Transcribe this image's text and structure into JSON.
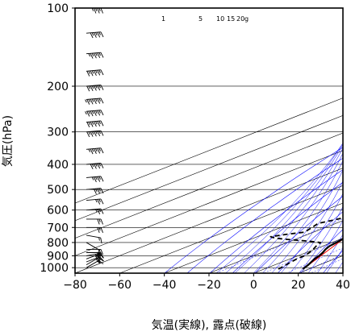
{
  "chart_data": {
    "type": "line",
    "subtype": "skew-T log-P",
    "xlabel": "気温(実線), 露点(破線)",
    "ylabel": "気圧(hPa)",
    "xlim": [
      -80,
      40
    ],
    "ylim": [
      1050,
      100
    ],
    "y_scale": "log",
    "x_ticks": [
      -80,
      -60,
      -40,
      -20,
      0,
      20,
      40
    ],
    "x_tick_labels": [
      "−80",
      "−60",
      "−40",
      "−20",
      "0",
      "20",
      "40"
    ],
    "y_ticks": [
      100,
      200,
      300,
      400,
      500,
      600,
      700,
      800,
      900,
      1000
    ],
    "grid": true,
    "mixing_ratio_labels": [
      "1",
      "5",
      "10",
      "15",
      "20",
      "g"
    ],
    "series": [
      {
        "style": "solid",
        "color": "#000000",
        "points": [
          {
            "p": 1013,
            "t": 17.5
          },
          {
            "p": 1000,
            "t": 16.5
          },
          {
            "p": 975,
            "t": 15.0
          },
          {
            "p": 950,
            "t": 13.0
          },
          {
            "p": 925,
            "t": 11.0
          },
          {
            "p": 900,
            "t": 9.5
          },
          {
            "p": 875,
            "t": 7.5
          },
          {
            "p": 850,
            "t": 5.0
          },
          {
            "p": 825,
            "t": 3.0
          },
          {
            "p": 800,
            "t": 2.0
          },
          {
            "p": 775,
            "t": 1.0
          },
          {
            "p": 750,
            "t": 0.0
          },
          {
            "p": 725,
            "t": -1.0
          },
          {
            "p": 700,
            "t": -2.0
          },
          {
            "p": 675,
            "t": -3.5
          },
          {
            "p": 650,
            "t": -5.5
          },
          {
            "p": 625,
            "t": -7.5
          },
          {
            "p": 600,
            "t": -9.0
          },
          {
            "p": 575,
            "t": -10.5
          },
          {
            "p": 550,
            "t": -12.5
          },
          {
            "p": 525,
            "t": -14.0
          },
          {
            "p": 500,
            "t": -16.5
          },
          {
            "p": 475,
            "t": -18.5
          },
          {
            "p": 450,
            "t": -21.0
          },
          {
            "p": 425,
            "t": -23.5
          },
          {
            "p": 400,
            "t": -26.0
          },
          {
            "p": 375,
            "t": -28.5
          },
          {
            "p": 350,
            "t": -31.5
          },
          {
            "p": 325,
            "t": -35.0
          },
          {
            "p": 310,
            "t": -37.0
          },
          {
            "p": 300,
            "t": -39.5
          },
          {
            "p": 290,
            "t": -41.5
          },
          {
            "p": 275,
            "t": -41.0
          },
          {
            "p": 260,
            "t": -42.0
          },
          {
            "p": 250,
            "t": -44.0
          },
          {
            "p": 225,
            "t": -48.0
          },
          {
            "p": 200,
            "t": -52.5
          },
          {
            "p": 175,
            "t": -56.0
          },
          {
            "p": 150,
            "t": -60.0
          },
          {
            "p": 140,
            "t": -62.0
          },
          {
            "p": 130,
            "t": -63.5
          },
          {
            "p": 125,
            "t": -65.0
          },
          {
            "p": 120,
            "t": -68.0
          },
          {
            "p": 110,
            "t": -70.0
          },
          {
            "p": 105,
            "t": -68.0
          },
          {
            "p": 100,
            "t": -67.0
          }
        ]
      },
      {
        "style": "dashed",
        "color": "#000000",
        "points": [
          {
            "p": 1013,
            "t": 6.5
          },
          {
            "p": 1000,
            "t": 6.0
          },
          {
            "p": 975,
            "t": 5.0
          },
          {
            "p": 950,
            "t": 4.0
          },
          {
            "p": 925,
            "t": 3.0
          },
          {
            "p": 900,
            "t": 3.0
          },
          {
            "p": 875,
            "t": 1.5
          },
          {
            "p": 850,
            "t": -0.5
          },
          {
            "p": 825,
            "t": -3.0
          },
          {
            "p": 800,
            "t": -5.0
          },
          {
            "p": 790,
            "t": -12.0
          },
          {
            "p": 780,
            "t": -22.0
          },
          {
            "p": 770,
            "t": -30.0
          },
          {
            "p": 760,
            "t": -34.0
          },
          {
            "p": 745,
            "t": -30.0
          },
          {
            "p": 730,
            "t": -24.0
          },
          {
            "p": 700,
            "t": -26.0
          },
          {
            "p": 675,
            "t": -28.0
          },
          {
            "p": 650,
            "t": -24.0
          },
          {
            "p": 625,
            "t": -21.0
          },
          {
            "p": 600,
            "t": -20.0
          },
          {
            "p": 575,
            "t": -24.0
          },
          {
            "p": 550,
            "t": -22.0
          },
          {
            "p": 525,
            "t": -28.0
          },
          {
            "p": 500,
            "t": -36.0
          },
          {
            "p": 490,
            "t": -40.0
          },
          {
            "p": 475,
            "t": -36.0
          },
          {
            "p": 460,
            "t": -32.0
          },
          {
            "p": 440,
            "t": -30.0
          },
          {
            "p": 425,
            "t": -31.0
          },
          {
            "p": 410,
            "t": -33.0
          },
          {
            "p": 400,
            "t": -36.0
          },
          {
            "p": 390,
            "t": -40.0
          },
          {
            "p": 375,
            "t": -49.0
          },
          {
            "p": 350,
            "t": -55.0
          },
          {
            "p": 325,
            "t": -58.0
          },
          {
            "p": 310,
            "t": -64.0
          },
          {
            "p": 300,
            "t": -68.0
          }
        ]
      }
    ]
  },
  "colors": {
    "isotherm": "#000000",
    "dry_adiabat": "#0000ff",
    "moist_adiabat": "#0000ff",
    "mixing_ratio": "#0000ff",
    "parcel_path": "#ff0000",
    "temperature": "#000000",
    "dewpoint": "#000000",
    "wind_barbs": "#000000"
  },
  "wind_barbs": [
    {
      "p": 1000,
      "dir": 240,
      "speed": 10
    },
    {
      "p": 975,
      "dir": 240,
      "speed": 15
    },
    {
      "p": 950,
      "dir": 250,
      "speed": 15
    },
    {
      "p": 925,
      "dir": 250,
      "speed": 20
    },
    {
      "p": 900,
      "dir": 260,
      "speed": 20
    },
    {
      "p": 875,
      "dir": 270,
      "speed": 15
    },
    {
      "p": 850,
      "dir": 270,
      "speed": 10
    },
    {
      "p": 800,
      "dir": 300,
      "speed": 5
    },
    {
      "p": 750,
      "dir": 280,
      "speed": 10
    },
    {
      "p": 700,
      "dir": 270,
      "speed": 15
    },
    {
      "p": 650,
      "dir": 270,
      "speed": 15
    },
    {
      "p": 600,
      "dir": 265,
      "speed": 20
    },
    {
      "p": 550,
      "dir": 265,
      "speed": 20
    },
    {
      "p": 500,
      "dir": 265,
      "speed": 25
    },
    {
      "p": 450,
      "dir": 265,
      "speed": 30
    },
    {
      "p": 400,
      "dir": 265,
      "speed": 35
    },
    {
      "p": 350,
      "dir": 265,
      "speed": 40
    },
    {
      "p": 300,
      "dir": 265,
      "speed": 45
    },
    {
      "p": 275,
      "dir": 265,
      "speed": 45
    },
    {
      "p": 250,
      "dir": 265,
      "speed": 50
    },
    {
      "p": 225,
      "dir": 265,
      "speed": 50
    },
    {
      "p": 200,
      "dir": 265,
      "speed": 45
    },
    {
      "p": 175,
      "dir": 265,
      "speed": 45
    },
    {
      "p": 150,
      "dir": 265,
      "speed": 40
    },
    {
      "p": 125,
      "dir": 265,
      "speed": 35
    },
    {
      "p": 100,
      "dir": 270,
      "speed": 30
    }
  ]
}
